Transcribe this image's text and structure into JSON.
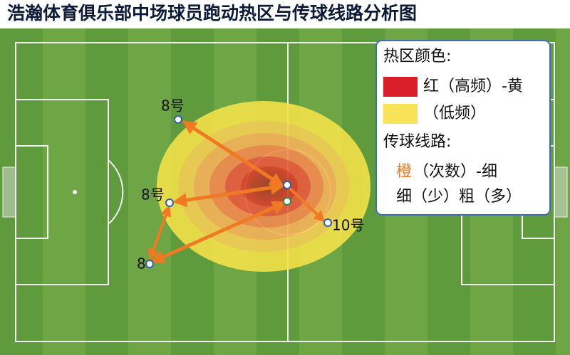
{
  "title": "浩瀚体育俱乐部中场球员跑动热区与传球线路分析图",
  "legend": {
    "heat_title": "热区颜色:",
    "heat_high": "红（高频）-黄",
    "heat_low": "（低频）",
    "pass_title": "传球线路:",
    "pass_color_word": "橙",
    "pass_color_rest": "（次数）-细",
    "pass_width": "细（少）粗（多）"
  },
  "players": [
    {
      "label": "8号"
    },
    {
      "label": "8号"
    },
    {
      "label": "8"
    },
    {
      "label": "10号"
    }
  ]
}
